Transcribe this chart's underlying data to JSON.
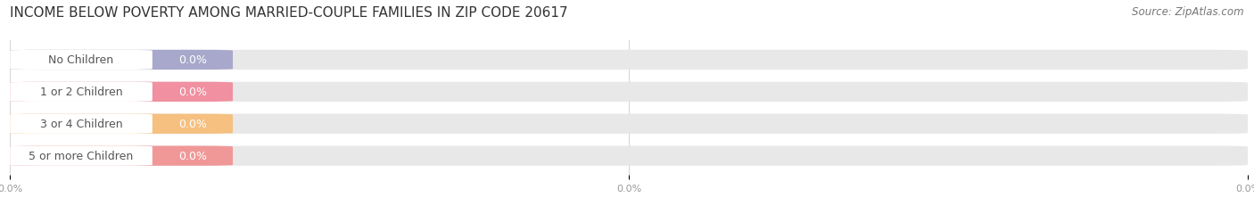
{
  "title": "INCOME BELOW POVERTY AMONG MARRIED-COUPLE FAMILIES IN ZIP CODE 20617",
  "source": "Source: ZipAtlas.com",
  "categories": [
    "No Children",
    "1 or 2 Children",
    "3 or 4 Children",
    "5 or more Children"
  ],
  "values": [
    0.0,
    0.0,
    0.0,
    0.0
  ],
  "bar_colors": [
    "#a8a8cc",
    "#f090a0",
    "#f5c080",
    "#f09898"
  ],
  "bar_bg_color": "#e8e8e8",
  "background_color": "#ffffff",
  "title_fontsize": 11,
  "label_fontsize": 9,
  "source_fontsize": 8.5,
  "bar_height": 0.62,
  "value_label_color": "#ffffff",
  "category_label_color": "#555555",
  "tick_label_color": "#999999",
  "grid_color": "#cccccc",
  "white_pill_color": "#ffffff",
  "bar_portion": 0.18
}
